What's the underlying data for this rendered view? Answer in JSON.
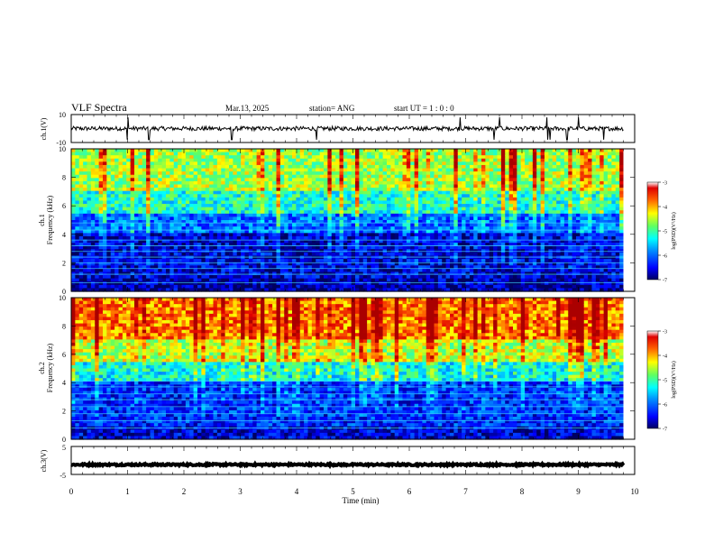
{
  "header": {
    "title": "VLF Spectra",
    "date": "Mar.13, 2025",
    "station": "station= ANG",
    "start": "start  UT =   1 : 0  : 0"
  },
  "colors": {
    "spectrogram_cmap": [
      "#00007a",
      "#0000ff",
      "#0080ff",
      "#00ffff",
      "#80ff80",
      "#ffff00",
      "#ff8000",
      "#ff0000",
      "#b00000"
    ],
    "trace": "#000000"
  },
  "chart_data": [
    {
      "type": "line",
      "panel": "ch1-waveform",
      "ylabel": "ch.1(V)",
      "ylim": [
        -10,
        10
      ],
      "yticks": [
        "10",
        "-10"
      ],
      "xlim": [
        0,
        10
      ],
      "series": [
        {
          "x_range": [
            0,
            9.8
          ],
          "level": 0,
          "noise_amplitude": 1.5,
          "spikes_at": [
            1.0,
            1.38,
            2.85,
            4.35,
            6.9,
            7.5,
            7.6,
            8.45,
            8.5,
            8.8,
            9.0,
            9.45
          ]
        }
      ]
    },
    {
      "type": "heatmap",
      "panel": "ch1-spectrogram",
      "ylabel": "ch.1 Frequency (kHz)",
      "xlim": [
        0,
        10
      ],
      "ylim": [
        0,
        10
      ],
      "yticks": [
        "0",
        "2",
        "4",
        "6",
        "8",
        "10"
      ],
      "data_x_range": [
        0,
        9.8
      ],
      "colorbar": {
        "label": "log(PSD)(V²/Hz)",
        "range": [
          -7,
          -3
        ],
        "ticks": [
          "-3",
          "-4",
          "-5",
          "-6",
          "-7"
        ]
      },
      "median_log_psd_by_band": [
        {
          "freq_kHz": [
            0,
            1
          ],
          "log_psd": -6.8
        },
        {
          "freq_kHz": [
            1,
            4
          ],
          "log_psd": -6.6
        },
        {
          "freq_kHz": [
            4,
            5.5
          ],
          "log_psd": -6.0
        },
        {
          "freq_kHz": [
            5.5,
            7
          ],
          "log_psd": -5.2
        },
        {
          "freq_kHz": [
            7,
            10
          ],
          "log_psd": -4.6
        }
      ],
      "narrowband_lines_kHz": [
        0.6,
        1.2,
        1.6,
        2.0,
        2.4,
        2.8,
        3.2,
        3.6,
        4.3,
        4.8
      ]
    },
    {
      "type": "heatmap",
      "panel": "ch2-spectrogram",
      "ylabel": "ch.2 Frequency (kHz)",
      "xlim": [
        0,
        10
      ],
      "ylim": [
        0,
        10
      ],
      "yticks": [
        "0",
        "2",
        "4",
        "6",
        "8",
        "10"
      ],
      "data_x_range": [
        0,
        9.8
      ],
      "colorbar": {
        "label": "log(PSD)(V²/Hz)",
        "range": [
          -7,
          -3
        ],
        "ticks": [
          "-3",
          "-4",
          "-5",
          "-6",
          "-7"
        ]
      },
      "median_log_psd_by_band": [
        {
          "freq_kHz": [
            0,
            1
          ],
          "log_psd": -6.6
        },
        {
          "freq_kHz": [
            1,
            4
          ],
          "log_psd": -6.3
        },
        {
          "freq_kHz": [
            4,
            5.5
          ],
          "log_psd": -5.3
        },
        {
          "freq_kHz": [
            5.5,
            7
          ],
          "log_psd": -4.5
        },
        {
          "freq_kHz": [
            7,
            10
          ],
          "log_psd": -3.8
        }
      ],
      "narrowband_lines_kHz": [
        0.8,
        1.3,
        1.8,
        2.3,
        2.8,
        3.2,
        3.7,
        4.1
      ]
    },
    {
      "type": "line",
      "panel": "ch3-waveform",
      "ylabel": "ch.3(V)",
      "ylim": [
        -5,
        5
      ],
      "yticks": [
        "5",
        "-5"
      ],
      "xlim": [
        0,
        10
      ],
      "series": [
        {
          "x_range": [
            0,
            9.8
          ],
          "level": -1.5,
          "noise_amplitude": 0.3
        }
      ]
    }
  ],
  "xaxis": {
    "label": "Time  (min)",
    "ticks": [
      "0",
      "1",
      "2",
      "3",
      "4",
      "5",
      "6",
      "7",
      "8",
      "9",
      "10"
    ]
  }
}
